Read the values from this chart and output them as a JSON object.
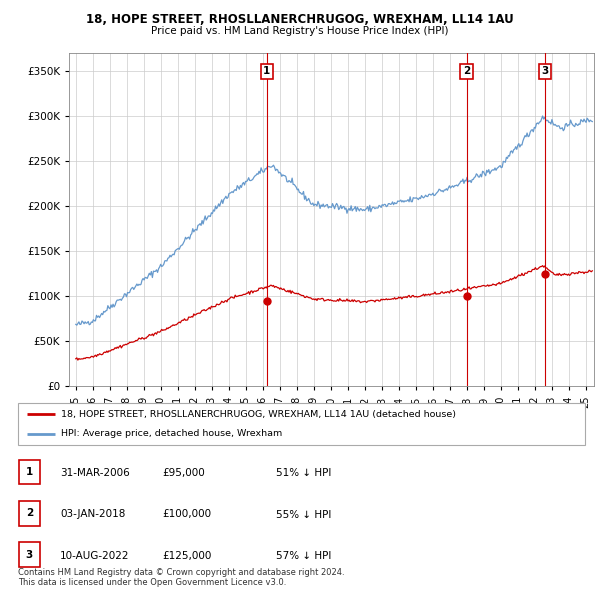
{
  "title_line1": "18, HOPE STREET, RHOSLLANERCHRUGOG, WREXHAM, LL14 1AU",
  "title_line2": "Price paid vs. HM Land Registry's House Price Index (HPI)",
  "sale_color": "#cc0000",
  "hpi_color": "#6699cc",
  "background_color": "#ffffff",
  "grid_color": "#cccccc",
  "ylim": [
    0,
    370000
  ],
  "yticks": [
    0,
    50000,
    100000,
    150000,
    200000,
    250000,
    300000,
    350000
  ],
  "ytick_labels": [
    "£0",
    "£50K",
    "£100K",
    "£150K",
    "£200K",
    "£250K",
    "£300K",
    "£350K"
  ],
  "sale_prices": [
    95000,
    100000,
    125000
  ],
  "sale_labels": [
    "1",
    "2",
    "3"
  ],
  "vline_dates": [
    2006.247,
    2018.008,
    2022.608
  ],
  "legend_sale_label": "18, HOPE STREET, RHOSLLANERCHRUGOG, WREXHAM, LL14 1AU (detached house)",
  "legend_hpi_label": "HPI: Average price, detached house, Wrexham",
  "table_rows": [
    [
      "1",
      "31-MAR-2006",
      "£95,000",
      "51% ↓ HPI"
    ],
    [
      "2",
      "03-JAN-2018",
      "£100,000",
      "55% ↓ HPI"
    ],
    [
      "3",
      "10-AUG-2022",
      "£125,000",
      "57% ↓ HPI"
    ]
  ],
  "footnote": "Contains HM Land Registry data © Crown copyright and database right 2024.\nThis data is licensed under the Open Government Licence v3.0.",
  "xlim_start": 1994.6,
  "xlim_end": 2025.5,
  "xtick_years": [
    1995,
    1996,
    1997,
    1998,
    1999,
    2000,
    2001,
    2002,
    2003,
    2004,
    2005,
    2006,
    2007,
    2008,
    2009,
    2010,
    2011,
    2012,
    2013,
    2014,
    2015,
    2016,
    2017,
    2018,
    2019,
    2020,
    2021,
    2022,
    2023,
    2024,
    2025
  ]
}
